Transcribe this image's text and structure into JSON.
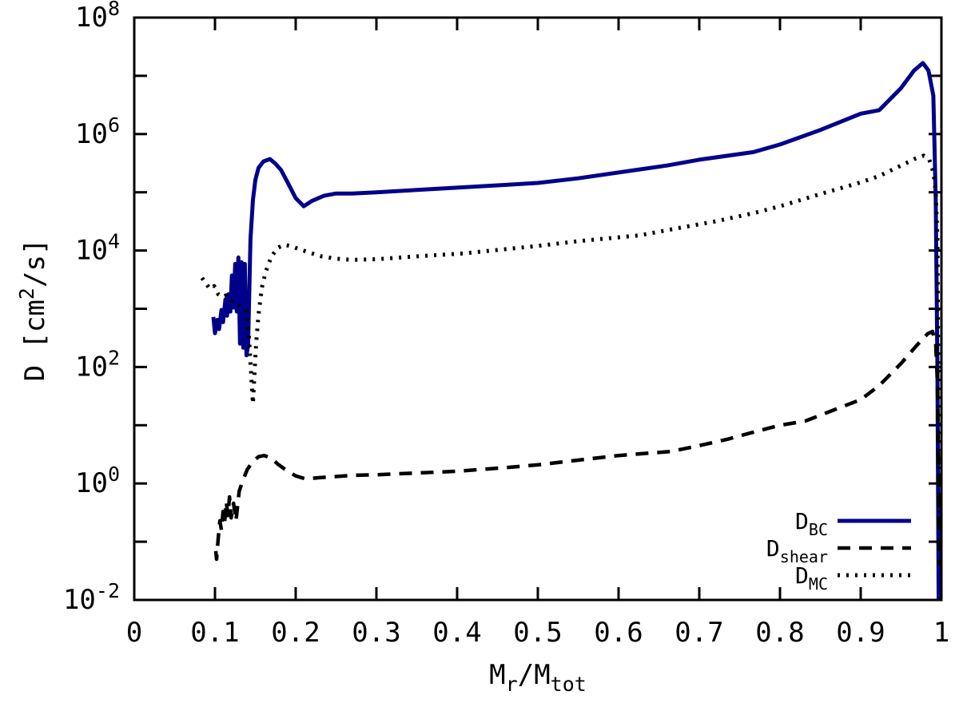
{
  "figure": {
    "background_color": "#ffffff",
    "frame_color": "#000000"
  },
  "chart_data": {
    "type": "line",
    "title": "",
    "xlabel": "M_r/M_tot",
    "ylabel": "D [cm^2/s]",
    "x_axis": {
      "min": 0,
      "max": 1,
      "tick_values": [
        0,
        0.1,
        0.2,
        0.3,
        0.4,
        0.5,
        0.6,
        0.7,
        0.8,
        0.9,
        1
      ],
      "tick_labels": [
        "0",
        "0.1",
        "0.2",
        "0.3",
        "0.4",
        "0.5",
        "0.6",
        "0.7",
        "0.8",
        "0.9",
        "1"
      ]
    },
    "y_axis": {
      "scale": "log10",
      "min": 0.01,
      "max": 100000000.0,
      "tick_exponents": [
        -2,
        -1,
        0,
        1,
        2,
        3,
        4,
        5,
        6,
        7,
        8
      ],
      "labeled_exponents": [
        -2,
        0,
        2,
        4,
        6,
        8
      ],
      "mantissa": "10"
    },
    "grid": false,
    "legend": {
      "position": "bottom-right",
      "items": [
        {
          "label": "D",
          "sub": "BC",
          "series": "D_BC"
        },
        {
          "label": "D",
          "sub": "shear",
          "series": "D_shear"
        },
        {
          "label": "D",
          "sub": "MC",
          "series": "D_MC"
        }
      ]
    },
    "y_format_note": "points are [x = Mr/Mtot, log10(D [cm2/s])]",
    "series": [
      {
        "name": "D_BC",
        "style": "solid",
        "color": "#00008b",
        "width": 5,
        "dash": "",
        "points": [
          [
            0.098,
            2.86
          ],
          [
            0.1,
            2.58
          ],
          [
            0.103,
            2.81
          ],
          [
            0.105,
            2.65
          ],
          [
            0.108,
            2.98
          ],
          [
            0.11,
            2.77
          ],
          [
            0.113,
            3.16
          ],
          [
            0.115,
            2.88
          ],
          [
            0.117,
            3.25
          ],
          [
            0.119,
            2.95
          ],
          [
            0.121,
            3.57
          ],
          [
            0.123,
            3.02
          ],
          [
            0.125,
            3.77
          ],
          [
            0.127,
            2.95
          ],
          [
            0.129,
            3.88
          ],
          [
            0.131,
            2.4
          ],
          [
            0.133,
            3.8
          ],
          [
            0.135,
            2.33
          ],
          [
            0.137,
            3.77
          ],
          [
            0.139,
            2.2
          ],
          [
            0.141,
            2.36
          ],
          [
            0.144,
            4.19
          ],
          [
            0.147,
            4.87
          ],
          [
            0.15,
            5.21
          ],
          [
            0.154,
            5.42
          ],
          [
            0.16,
            5.53
          ],
          [
            0.168,
            5.57
          ],
          [
            0.175,
            5.49
          ],
          [
            0.182,
            5.38
          ],
          [
            0.19,
            5.17
          ],
          [
            0.2,
            4.9
          ],
          [
            0.21,
            4.76
          ],
          [
            0.22,
            4.85
          ],
          [
            0.235,
            4.94
          ],
          [
            0.25,
            4.98
          ],
          [
            0.27,
            4.98
          ],
          [
            0.3,
            5.0
          ],
          [
            0.35,
            5.04
          ],
          [
            0.4,
            5.08
          ],
          [
            0.45,
            5.12
          ],
          [
            0.5,
            5.16
          ],
          [
            0.55,
            5.24
          ],
          [
            0.62,
            5.38
          ],
          [
            0.66,
            5.46
          ],
          [
            0.7,
            5.56
          ],
          [
            0.767,
            5.69
          ],
          [
            0.8,
            5.82
          ],
          [
            0.85,
            6.07
          ],
          [
            0.9,
            6.35
          ],
          [
            0.923,
            6.41
          ],
          [
            0.95,
            6.79
          ],
          [
            0.966,
            7.09
          ],
          [
            0.977,
            7.22
          ],
          [
            0.984,
            7.09
          ],
          [
            0.99,
            6.66
          ],
          [
            0.993,
            4.87
          ],
          [
            0.995,
            1.99
          ],
          [
            0.996,
            -0.61
          ],
          [
            0.9965,
            -2.0
          ]
        ]
      },
      {
        "name": "D_shear",
        "style": "dashed",
        "color": "#000000",
        "width": 4.5,
        "dash": "16 11",
        "points": [
          [
            0.101,
            -1.16
          ],
          [
            0.102,
            -1.3
          ],
          [
            0.104,
            -0.95
          ],
          [
            0.106,
            -0.64
          ],
          [
            0.108,
            -0.8
          ],
          [
            0.11,
            -0.48
          ],
          [
            0.112,
            -0.66
          ],
          [
            0.114,
            -0.31
          ],
          [
            0.116,
            -0.55
          ],
          [
            0.118,
            -0.23
          ],
          [
            0.12,
            -0.59
          ],
          [
            0.123,
            -0.34
          ],
          [
            0.126,
            -0.64
          ],
          [
            0.13,
            -0.13
          ],
          [
            0.135,
            0.07
          ],
          [
            0.14,
            0.24
          ],
          [
            0.147,
            0.38
          ],
          [
            0.154,
            0.46
          ],
          [
            0.161,
            0.48
          ],
          [
            0.169,
            0.44
          ],
          [
            0.178,
            0.33
          ],
          [
            0.19,
            0.21
          ],
          [
            0.2,
            0.13
          ],
          [
            0.212,
            0.08
          ],
          [
            0.23,
            0.1
          ],
          [
            0.25,
            0.12
          ],
          [
            0.27,
            0.14
          ],
          [
            0.3,
            0.15
          ],
          [
            0.35,
            0.18
          ],
          [
            0.4,
            0.21
          ],
          [
            0.467,
            0.28
          ],
          [
            0.5,
            0.32
          ],
          [
            0.55,
            0.4
          ],
          [
            0.6,
            0.48
          ],
          [
            0.665,
            0.55
          ],
          [
            0.7,
            0.65
          ],
          [
            0.735,
            0.76
          ],
          [
            0.764,
            0.87
          ],
          [
            0.8,
            1.0
          ],
          [
            0.831,
            1.07
          ],
          [
            0.87,
            1.28
          ],
          [
            0.9,
            1.44
          ],
          [
            0.923,
            1.68
          ],
          [
            0.95,
            2.06
          ],
          [
            0.97,
            2.38
          ],
          [
            0.983,
            2.57
          ],
          [
            0.989,
            2.61
          ],
          [
            0.993,
            2.4
          ],
          [
            0.995,
            1.72
          ],
          [
            0.996,
            0.62
          ],
          [
            0.9965,
            -0.62
          ],
          [
            0.997,
            -1.4
          ]
        ]
      },
      {
        "name": "D_MC",
        "style": "dotted",
        "color": "#000000",
        "width": 5,
        "dash": "3 8",
        "points": [
          [
            0.084,
            3.53
          ],
          [
            0.089,
            3.43
          ],
          [
            0.094,
            3.34
          ],
          [
            0.099,
            3.39
          ],
          [
            0.104,
            3.25
          ],
          [
            0.109,
            3.2
          ],
          [
            0.114,
            3.23
          ],
          [
            0.12,
            3.14
          ],
          [
            0.126,
            3.09
          ],
          [
            0.132,
            3.02
          ],
          [
            0.138,
            2.98
          ],
          [
            0.142,
            2.54
          ],
          [
            0.145,
            1.85
          ],
          [
            0.147,
            1.37
          ],
          [
            0.149,
            1.9
          ],
          [
            0.151,
            2.4
          ],
          [
            0.154,
            2.9
          ],
          [
            0.158,
            3.36
          ],
          [
            0.163,
            3.64
          ],
          [
            0.17,
            3.9
          ],
          [
            0.178,
            4.05
          ],
          [
            0.186,
            4.1
          ],
          [
            0.195,
            4.07
          ],
          [
            0.205,
            4.02
          ],
          [
            0.218,
            3.96
          ],
          [
            0.232,
            3.9
          ],
          [
            0.25,
            3.86
          ],
          [
            0.27,
            3.84
          ],
          [
            0.3,
            3.85
          ],
          [
            0.35,
            3.9
          ],
          [
            0.408,
            3.95
          ],
          [
            0.45,
            4.01
          ],
          [
            0.5,
            4.08
          ],
          [
            0.55,
            4.16
          ],
          [
            0.626,
            4.26
          ],
          [
            0.68,
            4.4
          ],
          [
            0.72,
            4.5
          ],
          [
            0.767,
            4.64
          ],
          [
            0.8,
            4.76
          ],
          [
            0.85,
            4.97
          ],
          [
            0.9,
            5.17
          ],
          [
            0.923,
            5.28
          ],
          [
            0.95,
            5.46
          ],
          [
            0.968,
            5.58
          ],
          [
            0.978,
            5.63
          ],
          [
            0.985,
            5.56
          ],
          [
            0.99,
            5.35
          ],
          [
            0.993,
            5.0
          ],
          [
            0.995,
            4.19
          ],
          [
            0.9955,
            3.0
          ],
          [
            0.996,
            2.0
          ],
          [
            0.9965,
            0.5
          ],
          [
            0.997,
            -0.5
          ]
        ]
      }
    ]
  },
  "labels": {
    "ylabel_pre": "D [cm",
    "ylabel_sup": "2",
    "ylabel_post": "/s]",
    "xlabel_p1": "M",
    "xlabel_sub1": "r",
    "xlabel_p2": "/M",
    "xlabel_sub2": "tot"
  }
}
